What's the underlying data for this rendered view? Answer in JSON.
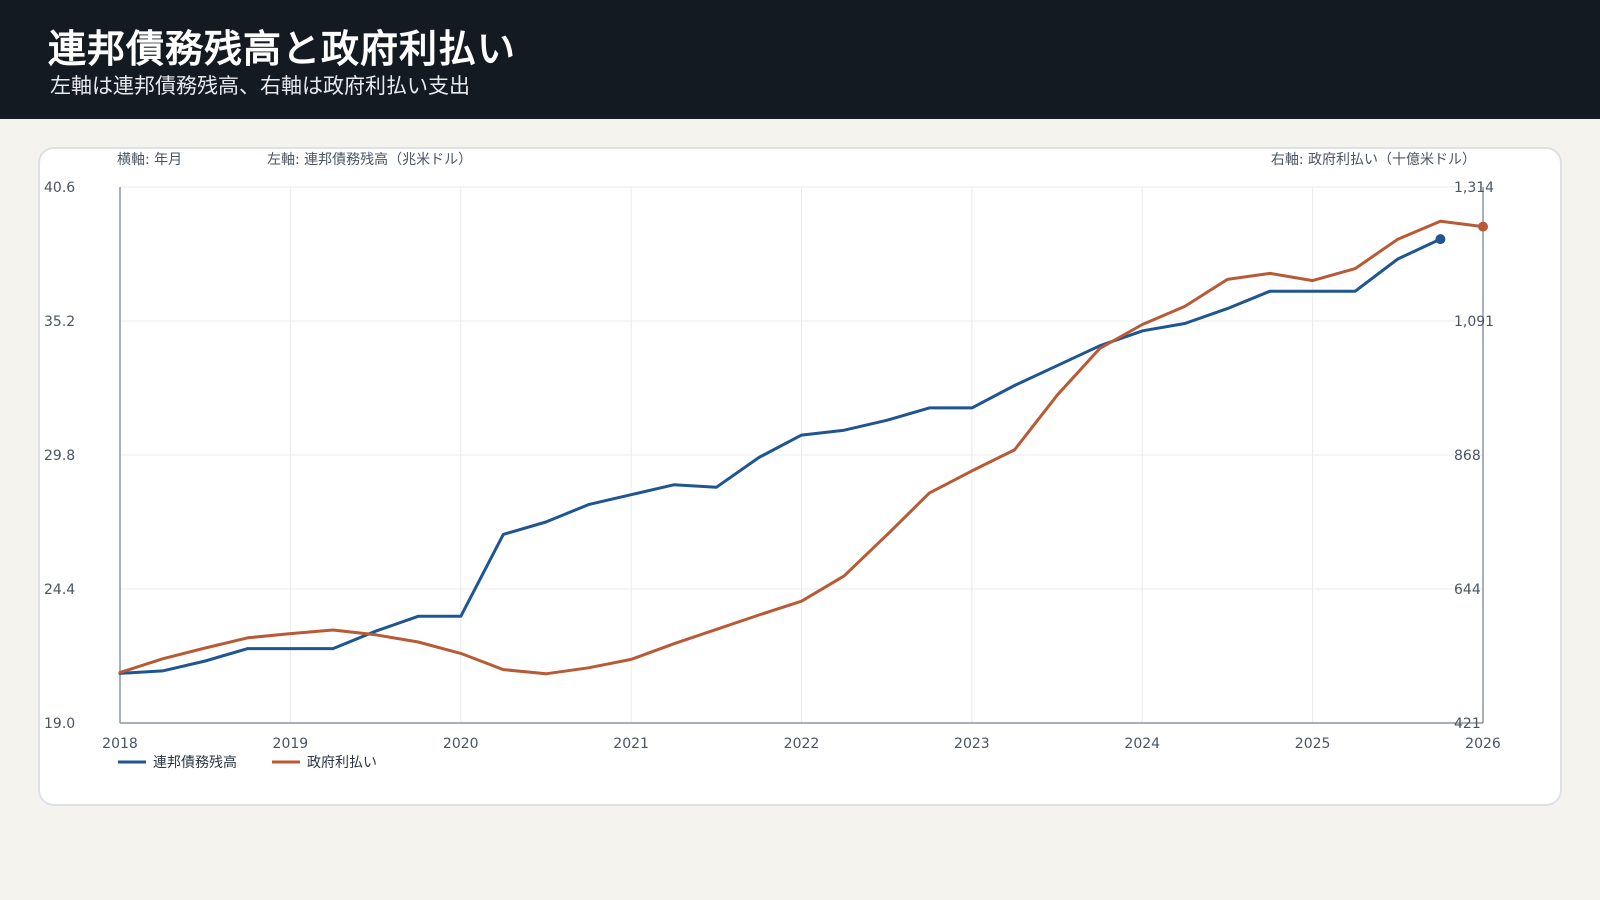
{
  "header": {
    "title": "連邦債務残高と政府利払い",
    "subtitle": "左軸は連邦債務残高、右軸は政府利払い支出"
  },
  "colors": {
    "header_bg": "#131a21",
    "page_bg": "#f5f3ee",
    "debt": "#1f5591",
    "interest": "#b85a36",
    "grid": "#e8ebef",
    "axis": "#8a96a6"
  },
  "chart_data": {
    "type": "line",
    "x_axis_title": "横軸: 年月",
    "left_axis_title": "左軸: 連邦債務残高（兆米ドル）",
    "right_axis_title": "右軸: 政府利払い（十億米ドル）",
    "x_range": [
      2018,
      2026
    ],
    "x_ticks": [
      "2018",
      "2019",
      "2020",
      "2021",
      "2022",
      "2023",
      "2024",
      "2025",
      "2026"
    ],
    "left_range": [
      19.0,
      40.6
    ],
    "left_ticks": [
      "40.6",
      "35.2",
      "29.8",
      "24.4",
      "19.0"
    ],
    "right_range": [
      421,
      1314
    ],
    "right_ticks": [
      "1,314",
      "1,091",
      "868",
      "644",
      "421"
    ],
    "grid": true,
    "legend_position": "bottom-left",
    "series": [
      {
        "name": "連邦債務残高",
        "axis": "left",
        "color": "#1f5591",
        "x": [
          2018.0,
          2018.25,
          2018.5,
          2018.75,
          2019.0,
          2019.25,
          2019.5,
          2019.75,
          2020.0,
          2020.25,
          2020.5,
          2020.75,
          2021.0,
          2021.25,
          2021.5,
          2021.75,
          2022.0,
          2022.25,
          2022.5,
          2022.75,
          2023.0,
          2023.25,
          2023.5,
          2023.75,
          2024.0,
          2024.25,
          2024.5,
          2024.75,
          2025.0,
          2025.25,
          2025.5,
          2025.75
        ],
        "y": [
          21.0,
          21.1,
          21.5,
          22.0,
          22.0,
          22.0,
          22.7,
          23.3,
          23.3,
          26.6,
          27.1,
          27.8,
          28.2,
          28.6,
          28.5,
          29.7,
          30.6,
          30.8,
          31.2,
          31.7,
          31.7,
          32.6,
          33.4,
          34.2,
          34.8,
          35.1,
          35.7,
          36.4,
          36.4,
          36.4,
          37.7,
          38.5
        ]
      },
      {
        "name": "政府利払い",
        "axis": "right",
        "color": "#b85a36",
        "x": [
          2018.0,
          2018.25,
          2018.5,
          2018.75,
          2019.0,
          2019.25,
          2019.5,
          2019.75,
          2020.0,
          2020.25,
          2020.5,
          2020.75,
          2021.0,
          2021.25,
          2021.5,
          2021.75,
          2022.0,
          2022.25,
          2022.5,
          2022.75,
          2023.0,
          2023.25,
          2023.5,
          2023.75,
          2024.0,
          2024.25,
          2024.5,
          2024.75,
          2025.0,
          2025.25,
          2025.5,
          2025.75,
          2026.0
        ],
        "y": [
          505,
          528,
          546,
          563,
          570,
          576,
          568,
          556,
          537,
          510,
          503,
          513,
          527,
          553,
          577,
          601,
          624,
          666,
          734,
          804,
          841,
          876,
          967,
          1045,
          1085,
          1115,
          1160,
          1170,
          1158,
          1178,
          1227,
          1257,
          1248
        ]
      }
    ]
  }
}
